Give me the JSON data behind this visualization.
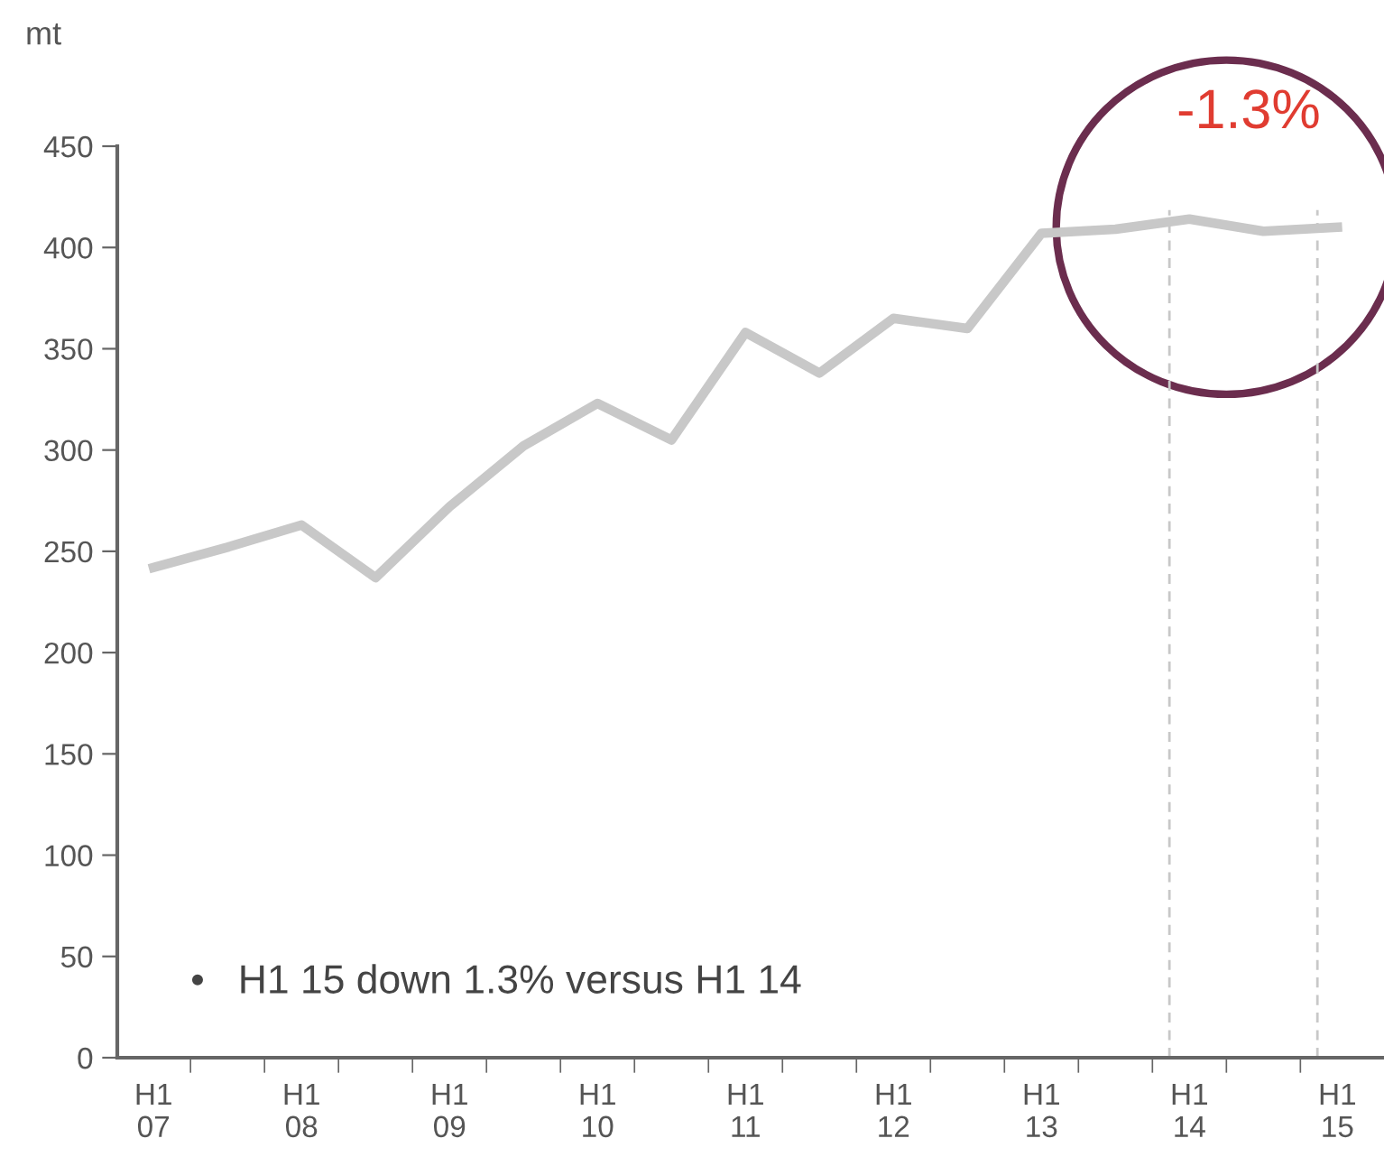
{
  "chart_data": {
    "type": "line",
    "ylabel": "mt",
    "categories": [
      "H1\n07",
      null,
      "H1\n08",
      null,
      "H1\n09",
      null,
      "H1\n10",
      null,
      "H1\n11",
      null,
      "H1\n12",
      null,
      "H1\n13",
      null,
      "H1\n14",
      null,
      "H1\n15"
    ],
    "series": [
      {
        "color": "#c8c8c8",
        "values": [
          242,
          252,
          263,
          237,
          272,
          302,
          323,
          305,
          358,
          338,
          365,
          360,
          407,
          409,
          414,
          408,
          410
        ]
      }
    ],
    "ylim": [
      0,
      450
    ],
    "yticks": [
      0,
      50,
      100,
      150,
      200,
      250,
      300,
      350,
      400,
      450
    ],
    "grid": false,
    "marker": "none",
    "line_style": "solid",
    "ref_lines": [
      {
        "axis": "x",
        "value": "H1\n14",
        "color": "#c8c8c8",
        "line_style": "dashed"
      },
      {
        "axis": "x",
        "value": "H1\n15",
        "color": "#c8c8c8",
        "line_style": "dashed"
      }
    ],
    "annotations": [
      {
        "text": "-1.3%",
        "x": "H1\n14",
        "y": 414
      },
      "•   H1 15 down 1.3% versus H1 14"
    ]
  }
}
